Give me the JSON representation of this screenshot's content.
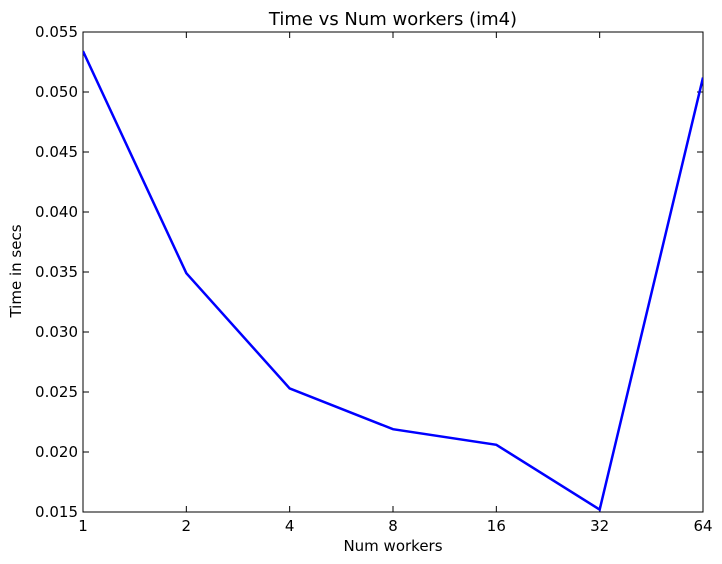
{
  "chart_data": {
    "type": "line",
    "title": "Time vs Num workers (im4)",
    "xlabel": "Num workers",
    "ylabel": "Time in secs",
    "x_scale": "log2",
    "categories": [
      "1",
      "2",
      "4",
      "8",
      "16",
      "32",
      "64"
    ],
    "x": [
      1,
      2,
      4,
      8,
      16,
      32,
      64
    ],
    "y_ticks": [
      "0.015",
      "0.020",
      "0.025",
      "0.030",
      "0.035",
      "0.040",
      "0.045",
      "0.050",
      "0.055"
    ],
    "ylim": [
      0.015,
      0.055
    ],
    "xlim": [
      1,
      64
    ],
    "grid": false,
    "series": [
      {
        "values": [
          0.0534,
          0.0349,
          0.0253,
          0.0219,
          0.0206,
          0.0152,
          0.0512
        ],
        "color": "#0000ff"
      }
    ]
  }
}
